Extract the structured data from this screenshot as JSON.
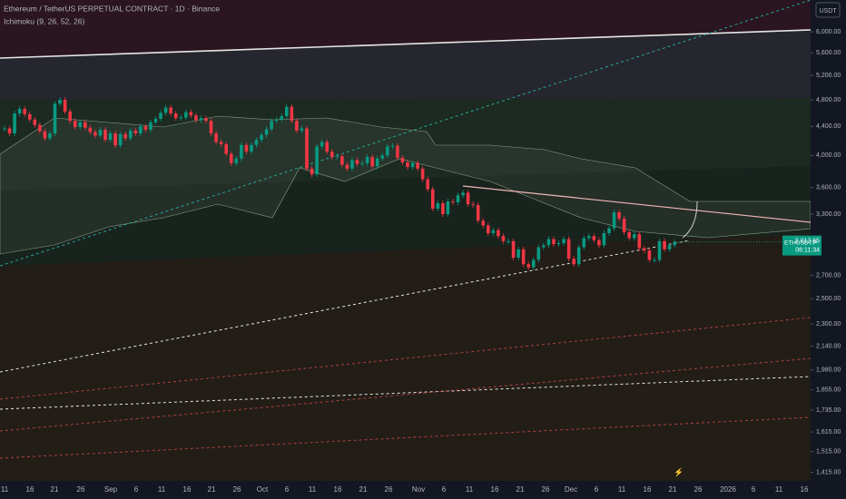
{
  "header": {
    "title": "Ethereum / TetherUS PERPETUAL CONTRACT · 1D · Binance",
    "indicator": "Ichimoku (9, 26, 52, 26)"
  },
  "chart_data": {
    "type": "candlestick",
    "log_scale": true,
    "currency": "USDT",
    "symbol": "ETHUSDT.P",
    "up_color": "#089981",
    "down_color": "#f23645",
    "ylim": [
      1376,
      6659
    ],
    "yticks": [
      {
        "value": 6000,
        "label": "6,000.00"
      },
      {
        "value": 5600,
        "label": "5,600.00"
      },
      {
        "value": 5200,
        "label": "5,200.00"
      },
      {
        "value": 4800,
        "label": "4,800.00"
      },
      {
        "value": 4400,
        "label": "4,400.00"
      },
      {
        "value": 4000,
        "label": "4,000.00"
      },
      {
        "value": 3600,
        "label": "3,600.00"
      },
      {
        "value": 3300,
        "label": "3,300.00"
      },
      {
        "value": 2700,
        "label": "2,700.00"
      },
      {
        "value": 2500,
        "label": "2,500.00"
      },
      {
        "value": 2300,
        "label": "2,300.00"
      },
      {
        "value": 2140,
        "label": "2,140.00"
      },
      {
        "value": 1980,
        "label": "1,980.00"
      },
      {
        "value": 1855,
        "label": "1,855.00"
      },
      {
        "value": 1735,
        "label": "1,735.00"
      },
      {
        "value": 1615,
        "label": "1,615.00"
      },
      {
        "value": 1515,
        "label": "1,515.00"
      },
      {
        "value": 1415,
        "label": "1,415.00"
      }
    ],
    "xticks": [
      "11",
      "16",
      "21",
      "26",
      "Sep",
      "6",
      "11",
      "16",
      "21",
      "26",
      "Oct",
      "6",
      "11",
      "16",
      "21",
      "26",
      "Nov",
      "6",
      "11",
      "16",
      "21",
      "26",
      "Dec",
      "6",
      "11",
      "16",
      "21",
      "26",
      "2026",
      "6",
      "11",
      "16"
    ],
    "values": [
      4370,
      4300,
      4590,
      4660,
      4580,
      4500,
      4420,
      4330,
      4230,
      4300,
      4740,
      4800,
      4620,
      4480,
      4390,
      4460,
      4380,
      4320,
      4270,
      4350,
      4210,
      4300,
      4135,
      4290,
      4230,
      4340,
      4300,
      4400,
      4350,
      4460,
      4510,
      4600,
      4680,
      4590,
      4520,
      4530,
      4610,
      4560,
      4490,
      4520,
      4480,
      4300,
      4180,
      4150,
      4020,
      3900,
      3960,
      4140,
      4050,
      4140,
      4210,
      4280,
      4360,
      4480,
      4500,
      4550,
      4690,
      4480,
      4340,
      4370,
      3830,
      3760,
      4120,
      4180,
      4050,
      3980,
      3990,
      3880,
      3830,
      3940,
      3890,
      3900,
      3980,
      3860,
      3960,
      4000,
      4120,
      4130,
      3970,
      3910,
      3850,
      3900,
      3830,
      3700,
      3580,
      3360,
      3420,
      3300,
      3440,
      3430,
      3510,
      3540,
      3410,
      3400,
      3230,
      3180,
      3100,
      3130,
      3070,
      3020,
      3020,
      2860,
      2940,
      2800,
      2770,
      2840,
      2960,
      2980,
      3040,
      2990,
      3000,
      3040,
      2850,
      2800,
      2960,
      3050,
      3070,
      3030,
      2980,
      3100,
      3150,
      3320,
      3250,
      3110,
      3050,
      3090,
      2950,
      2930,
      2840,
      2840,
      3020,
      2940,
      2980,
      3012.65
    ],
    "last_value_label": "3,012.65",
    "countdown": "06:11:34"
  }
}
